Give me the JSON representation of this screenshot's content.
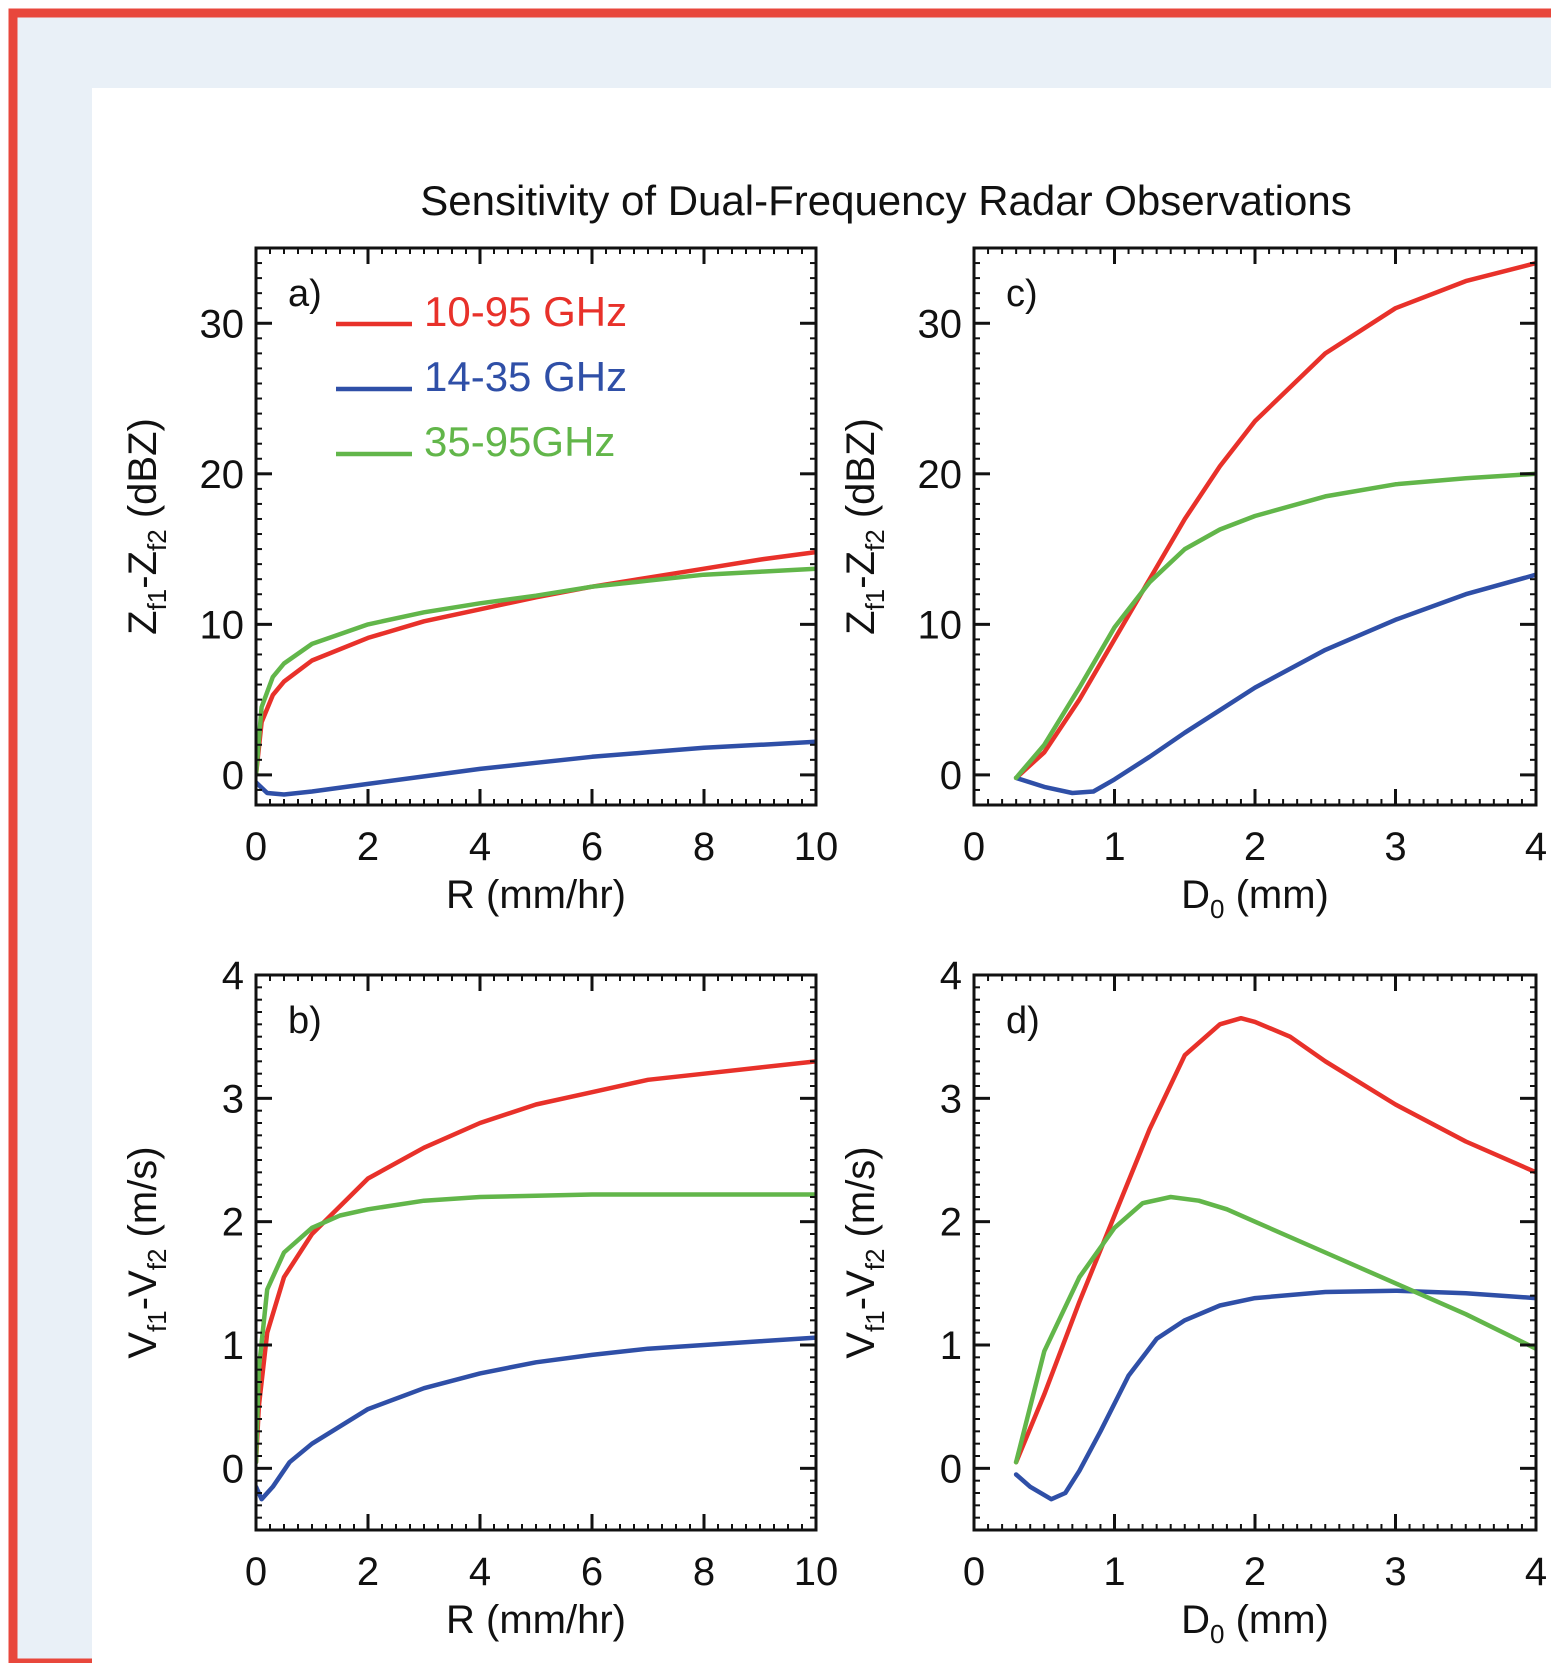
{
  "colors": {
    "border": "#e8473c",
    "background": "#e9f0f7",
    "red": "#e8312a",
    "blue": "#2f4fa7",
    "green": "#62b64a"
  },
  "figure_title": "Sensitivity of Dual-Frequency Radar Observations",
  "legend": [
    {
      "label": "10-95 GHz",
      "color": "#e8312a"
    },
    {
      "label": "14-35 GHz",
      "color": "#2f4fa7"
    },
    {
      "label": "35-95GHz",
      "color": "#62b64a"
    }
  ],
  "chart_data": [
    {
      "panel": "a)",
      "type": "line",
      "xlabel": "R (mm/hr)",
      "ylabel": "Z_f1-Z_f2 (dBZ)",
      "xlim": [
        0,
        10
      ],
      "ylim": [
        -2,
        35
      ],
      "xticks": [
        0,
        2,
        4,
        6,
        8,
        10
      ],
      "yticks": [
        0,
        10,
        20,
        30
      ],
      "series": [
        {
          "name": "10-95 GHz",
          "color": "#e8312a",
          "x": [
            0,
            0.1,
            0.3,
            0.5,
            1,
            2,
            3,
            4,
            5,
            6,
            7,
            8,
            9,
            10
          ],
          "y": [
            0,
            3.5,
            5.3,
            6.2,
            7.6,
            9.1,
            10.2,
            11.0,
            11.8,
            12.5,
            13.1,
            13.7,
            14.3,
            14.8
          ]
        },
        {
          "name": "14-35 GHz",
          "color": "#2f4fa7",
          "x": [
            0,
            0.2,
            0.5,
            1,
            2,
            3,
            4,
            5,
            6,
            7,
            8,
            9,
            10
          ],
          "y": [
            -0.5,
            -1.2,
            -1.3,
            -1.1,
            -0.6,
            -0.1,
            0.4,
            0.8,
            1.2,
            1.5,
            1.8,
            2.0,
            2.2
          ]
        },
        {
          "name": "35-95GHz",
          "color": "#62b64a",
          "x": [
            0,
            0.1,
            0.3,
            0.5,
            1,
            2,
            3,
            4,
            5,
            6,
            7,
            8,
            9,
            10
          ],
          "y": [
            0,
            4.5,
            6.5,
            7.4,
            8.7,
            10.0,
            10.8,
            11.4,
            11.9,
            12.5,
            12.9,
            13.3,
            13.5,
            13.7
          ]
        }
      ]
    },
    {
      "panel": "c)",
      "type": "line",
      "xlabel": "D_0 (mm)",
      "ylabel": "Z_f1-Z_f2 (dBZ)",
      "xlim": [
        0,
        4
      ],
      "ylim": [
        -2,
        35
      ],
      "xticks": [
        0,
        1,
        2,
        3,
        4
      ],
      "yticks": [
        0,
        10,
        20,
        30
      ],
      "series": [
        {
          "name": "10-95 GHz",
          "color": "#e8312a",
          "x": [
            0.3,
            0.5,
            0.75,
            1.0,
            1.25,
            1.5,
            1.75,
            2.0,
            2.5,
            3.0,
            3.5,
            4.0
          ],
          "y": [
            -0.2,
            1.5,
            5.0,
            9.0,
            13.0,
            17.0,
            20.5,
            23.5,
            28.0,
            31.0,
            32.8,
            34.0
          ]
        },
        {
          "name": "14-35 GHz",
          "color": "#2f4fa7",
          "x": [
            0.3,
            0.5,
            0.7,
            0.85,
            1.0,
            1.25,
            1.5,
            1.75,
            2.0,
            2.5,
            3.0,
            3.5,
            4.0
          ],
          "y": [
            -0.2,
            -0.8,
            -1.2,
            -1.1,
            -0.3,
            1.2,
            2.8,
            4.3,
            5.8,
            8.3,
            10.3,
            12.0,
            13.3
          ]
        },
        {
          "name": "35-95GHz",
          "color": "#62b64a",
          "x": [
            0.3,
            0.5,
            0.75,
            1.0,
            1.25,
            1.5,
            1.75,
            2.0,
            2.5,
            3.0,
            3.5,
            4.0
          ],
          "y": [
            -0.2,
            2.0,
            5.8,
            9.8,
            12.8,
            15.0,
            16.3,
            17.2,
            18.5,
            19.3,
            19.7,
            20.0
          ]
        }
      ]
    },
    {
      "panel": "b)",
      "type": "line",
      "xlabel": "R (mm/hr)",
      "ylabel": "V_f1-V_f2 (m/s)",
      "xlim": [
        0,
        10
      ],
      "ylim": [
        -0.5,
        4
      ],
      "xticks": [
        0,
        2,
        4,
        6,
        8,
        10
      ],
      "yticks": [
        0,
        1,
        2,
        3,
        4
      ],
      "series": [
        {
          "name": "10-95 GHz",
          "color": "#e8312a",
          "x": [
            0,
            0.05,
            0.2,
            0.5,
            1,
            2,
            3,
            4,
            5,
            6,
            7,
            8,
            9,
            10
          ],
          "y": [
            0.05,
            0.5,
            1.1,
            1.55,
            1.9,
            2.35,
            2.6,
            2.8,
            2.95,
            3.05,
            3.15,
            3.2,
            3.25,
            3.3
          ]
        },
        {
          "name": "14-35 GHz",
          "color": "#2f4fa7",
          "x": [
            0,
            0.1,
            0.3,
            0.6,
            1,
            2,
            3,
            4,
            5,
            6,
            7,
            8,
            9,
            10
          ],
          "y": [
            -0.15,
            -0.25,
            -0.15,
            0.05,
            0.2,
            0.48,
            0.65,
            0.77,
            0.86,
            0.92,
            0.97,
            1.0,
            1.03,
            1.06
          ]
        },
        {
          "name": "35-95GHz",
          "color": "#62b64a",
          "x": [
            0,
            0.05,
            0.2,
            0.5,
            1,
            1.5,
            2,
            3,
            4,
            5,
            6,
            7,
            8,
            9,
            10
          ],
          "y": [
            0.05,
            0.8,
            1.45,
            1.75,
            1.95,
            2.05,
            2.1,
            2.17,
            2.2,
            2.21,
            2.22,
            2.22,
            2.22,
            2.22,
            2.22
          ]
        }
      ]
    },
    {
      "panel": "d)",
      "type": "line",
      "xlabel": "D_0 (mm)",
      "ylabel": "V_f1-V_f2 (m/s)",
      "xlim": [
        0,
        4
      ],
      "ylim": [
        -0.5,
        4
      ],
      "xticks": [
        0,
        1,
        2,
        3,
        4
      ],
      "yticks": [
        0,
        1,
        2,
        3,
        4
      ],
      "series": [
        {
          "name": "10-95 GHz",
          "color": "#e8312a",
          "x": [
            0.3,
            0.5,
            0.75,
            1.0,
            1.25,
            1.5,
            1.75,
            1.9,
            2.0,
            2.25,
            2.5,
            3.0,
            3.5,
            4.0
          ],
          "y": [
            0.05,
            0.6,
            1.35,
            2.05,
            2.75,
            3.35,
            3.6,
            3.65,
            3.62,
            3.5,
            3.3,
            2.95,
            2.65,
            2.4
          ]
        },
        {
          "name": "14-35 GHz",
          "color": "#2f4fa7",
          "x": [
            0.3,
            0.4,
            0.55,
            0.65,
            0.75,
            0.9,
            1.1,
            1.3,
            1.5,
            1.75,
            2.0,
            2.5,
            3.0,
            3.5,
            4.0
          ],
          "y": [
            -0.05,
            -0.15,
            -0.25,
            -0.2,
            -0.02,
            0.3,
            0.75,
            1.05,
            1.2,
            1.32,
            1.38,
            1.43,
            1.44,
            1.42,
            1.38
          ]
        },
        {
          "name": "35-95GHz",
          "color": "#62b64a",
          "x": [
            0.3,
            0.5,
            0.75,
            1.0,
            1.2,
            1.4,
            1.6,
            1.8,
            2.0,
            2.5,
            3.0,
            3.5,
            4.0
          ],
          "y": [
            0.05,
            0.95,
            1.55,
            1.95,
            2.15,
            2.2,
            2.17,
            2.1,
            2.0,
            1.75,
            1.5,
            1.25,
            0.97
          ]
        }
      ]
    }
  ]
}
